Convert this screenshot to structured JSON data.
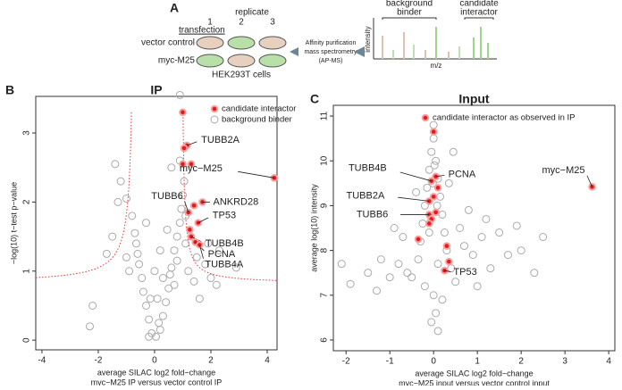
{
  "panel_a": {
    "label": "A",
    "transfection": "transfection",
    "replicate": "replicate",
    "replicates": [
      "1",
      "2",
      "3"
    ],
    "rows": [
      "vector control",
      "myc-M25"
    ],
    "cells": "HEK293T cells",
    "method": [
      "Affinity purification",
      "mass spectrometry",
      "(AP-MS)"
    ],
    "spectrum": {
      "y_label": "intensity",
      "x_label": "m/z",
      "background": [
        "background",
        "binder"
      ],
      "candidate": [
        "candidate",
        "interactor"
      ]
    }
  },
  "chart_data": [
    {
      "type": "scatter",
      "panel": "B",
      "title": "IP",
      "xlabel": [
        "average SILAC log2 fold−change",
        "myc−M25 IP versus vector control IP"
      ],
      "ylabel": "−log(10) t−test p−value",
      "xlim": [
        -4.22,
        4.35
      ],
      "ylim": [
        -0.14,
        3.53
      ],
      "xticks": [
        -4,
        -2,
        0,
        2,
        4
      ],
      "yticks": [
        0,
        1,
        2,
        3
      ],
      "legend": "top-right",
      "series": [
        {
          "name": "candidate interactor",
          "color": "#e41a1c",
          "marker": "filled",
          "x": [
            1.0,
            1.15,
            1.05,
            1.0,
            1.3,
            4.25,
            1.7,
            1.4,
            1.2,
            1.55,
            1.25,
            1.3,
            1.45,
            1.6
          ],
          "y": [
            3.3,
            2.82,
            2.78,
            2.55,
            2.55,
            2.35,
            2.0,
            1.95,
            1.85,
            1.7,
            1.6,
            1.5,
            1.42,
            1.38
          ],
          "labels": [
            null,
            "TUBB2A",
            null,
            null,
            null,
            "myc−M25",
            "ANKRD28",
            null,
            "TUBB6",
            "TP53",
            null,
            "TUBB4B",
            "PCNA",
            "TUBB4A"
          ]
        },
        {
          "name": "background binder",
          "color": "#aaaaaa",
          "marker": "open",
          "x": [
            -0.1,
            0.05,
            0.2,
            -0.2,
            0.3,
            -0.3,
            0.4,
            -0.4,
            0.5,
            -0.45,
            0.55,
            -0.55,
            0.6,
            -0.6,
            0.7,
            0.8,
            0.9,
            0.95,
            1.0,
            1.05,
            -0.65,
            -0.7,
            -0.8,
            -1.0,
            -1.2,
            -1.4,
            -1.3,
            -1.5,
            -1.7,
            -2.3,
            -2.2,
            -1.0,
            0.0,
            0.2,
            -0.3,
            0.1,
            0.8,
            0.7,
            1.2,
            1.4,
            1.6,
            2.3,
            2.2,
            2.9,
            0.9,
            0.6,
            1.5,
            1.9,
            -0.9,
            0.3,
            -0.15,
            0.45,
            1.1,
            0.9,
            1.1,
            -0.2,
            0.15,
            1.8,
            2.0
          ],
          "y": [
            0.1,
            0.05,
            0.15,
            0.3,
            0.35,
            0.5,
            0.55,
            0.7,
            0.75,
            0.9,
            0.95,
            1.1,
            1.05,
            1.25,
            1.3,
            1.5,
            1.7,
            1.9,
            2.1,
            2.3,
            1.4,
            1.55,
            1.8,
            2.05,
            2.3,
            2.55,
            2.0,
            1.5,
            1.25,
            0.2,
            0.5,
            1.2,
            1.0,
            1.3,
            1.7,
            0.6,
            1.15,
            0.8,
            1.0,
            0.85,
            0.6,
            1.3,
            0.8,
            1.05,
            3.55,
            2.5,
            1.2,
            1.4,
            1.0,
            0.9,
            0.6,
            1.6,
            1.4,
            2.6,
            1.8,
            0.05,
            0.25,
            1.1,
            0.9
          ]
        }
      ]
    },
    {
      "type": "scatter",
      "panel": "C",
      "title": "Input",
      "xlabel": [
        "average SILAC log2 fold−change",
        "myc−M25 input versus vector control input"
      ],
      "ylabel": "average log(10) intensity",
      "xlim": [
        -2.29,
        4.14
      ],
      "ylim": [
        5.76,
        11.24
      ],
      "xticks": [
        -2,
        -1,
        0,
        1,
        2,
        3,
        4
      ],
      "yticks": [
        6,
        7,
        8,
        9,
        10,
        11
      ],
      "legend": "top-right",
      "series": [
        {
          "name": "candidate interactor as observed in IP",
          "color": "#e41a1c",
          "marker": "filled",
          "x": [
            0,
            0.05,
            0.1,
            -0.05,
            0,
            -0.1,
            0.05,
            -0.1,
            -0.05,
            -0.1,
            -0.35,
            0.3,
            0.35,
            0.25,
            3.62
          ],
          "y": [
            10.65,
            9.65,
            9.4,
            9.55,
            9.2,
            9.1,
            8.85,
            8.8,
            8.7,
            8.6,
            8.25,
            8.1,
            7.75,
            7.55,
            9.42
          ],
          "labels": [
            null,
            "PCNA",
            null,
            "TUBB4B",
            null,
            "TUBB2A",
            null,
            "TUBB6",
            null,
            null,
            null,
            null,
            null,
            "TP53",
            "myc−M25"
          ]
        },
        {
          "color": "#aaaaaa",
          "marker": "open",
          "x": [
            0,
            -0.05,
            0.05,
            -0.1,
            0.1,
            -0.15,
            0.15,
            -0.2,
            0.2,
            -0.25,
            0.25,
            -0.3,
            0.3,
            -0.35,
            0.4,
            -0.5,
            0.5,
            0,
            0.05,
            -0.05,
            0.1,
            -0.6,
            -0.8,
            -1.0,
            -1.2,
            -1.5,
            -2.1,
            -1.9,
            0.7,
            0.9,
            1.1,
            1.3,
            1.5,
            1.7,
            2.0,
            2.3,
            2.5,
            1.9,
            1.2,
            0.8,
            -0.7,
            -0.4,
            0.35,
            0.6,
            -0.9,
            0,
            0.02,
            -0.02,
            0.08,
            -0.1,
            0.1,
            -0.2,
            0.2,
            1.0,
            -1.3,
            0.45
          ],
          "y": [
            10.5,
            10.2,
            10.0,
            9.8,
            9.6,
            9.4,
            9.2,
            9.0,
            8.8,
            8.6,
            8.4,
            8.2,
            8.0,
            7.8,
            7.6,
            7.4,
            7.3,
            7.0,
            6.6,
            6.4,
            6.2,
            7.5,
            7.7,
            7.4,
            7.8,
            7.5,
            7.7,
            7.25,
            8.1,
            7.9,
            8.3,
            7.6,
            8.4,
            7.9,
            8.0,
            7.5,
            8.3,
            8.55,
            8.7,
            8.9,
            8.3,
            9.3,
            9.5,
            8.5,
            8.5,
            10.8,
            9.9,
            9.5,
            9.0,
            8.4,
            7.7,
            7.2,
            6.9,
            7.2,
            7.1,
            10.2
          ]
        }
      ]
    }
  ]
}
